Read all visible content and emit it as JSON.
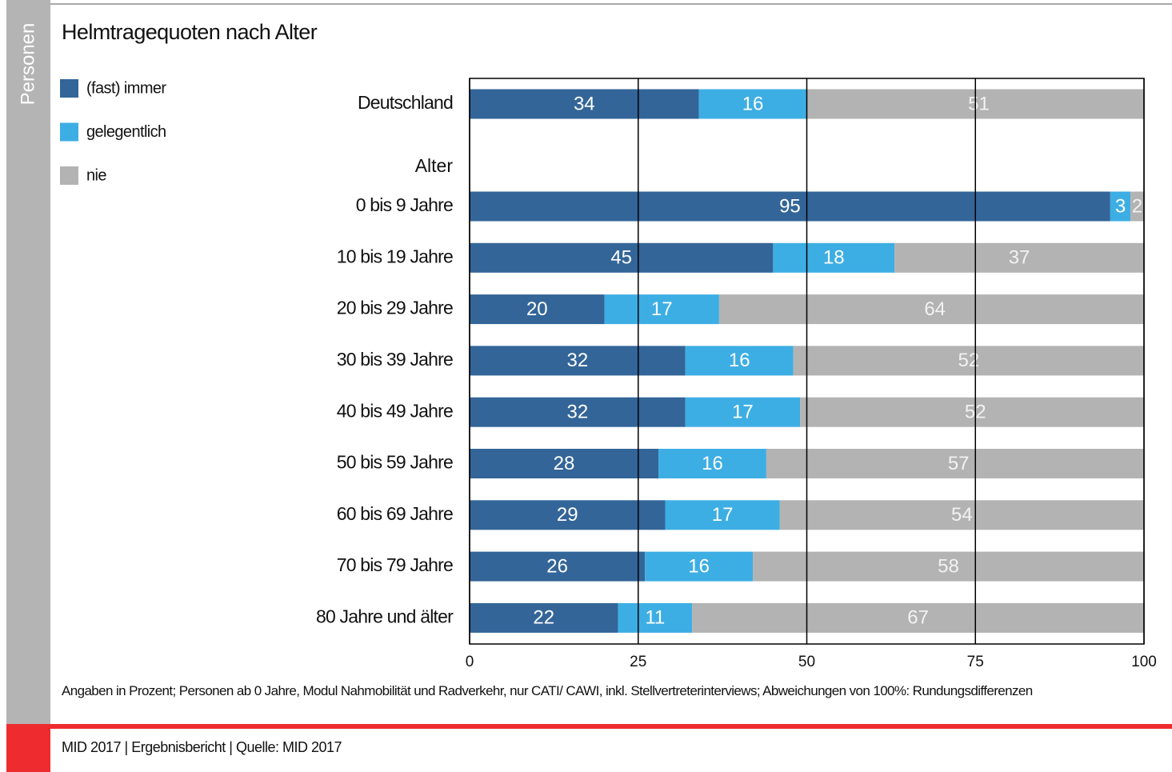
{
  "side_label": "Personen",
  "footnote": "Angaben in Prozent; Personen ab 0 Jahre, Modul Nahmobilität und Radverkehr, nur CATI/ CAWI, inkl. Stellvertreterinterviews; Abweichungen von 100%: Rundungsdifferenzen",
  "footer": "MID 2017  |  Ergebnisbericht  |  Quelle: MID 2017",
  "chart_data": {
    "type": "stacked_barh",
    "title": "Helmtragequoten nach Alter",
    "group_label": "Alter",
    "categories": [
      "Deutschland",
      "0 bis 9 Jahre",
      "10 bis 19 Jahre",
      "20 bis 29 Jahre",
      "30 bis 39 Jahre",
      "40 bis 49 Jahre",
      "50 bis 59 Jahre",
      "60 bis 69 Jahre",
      "70 bis 79 Jahre",
      "80 Jahre und älter"
    ],
    "series": [
      {
        "name": "(fast) immer",
        "color": "#336598",
        "values": [
          34,
          95,
          45,
          20,
          32,
          32,
          28,
          29,
          26,
          22
        ]
      },
      {
        "name": "gelegentlich",
        "color": "#3daee4",
        "values": [
          16,
          3,
          18,
          17,
          16,
          17,
          16,
          17,
          16,
          11
        ]
      },
      {
        "name": "nie",
        "color": "#b3b3b3",
        "values": [
          51,
          2,
          37,
          64,
          52,
          52,
          57,
          54,
          58,
          67
        ]
      }
    ],
    "xlim": [
      0,
      100
    ],
    "xticks": [
      0,
      25,
      50,
      75,
      100
    ],
    "grid": true,
    "legend": "upper left"
  }
}
